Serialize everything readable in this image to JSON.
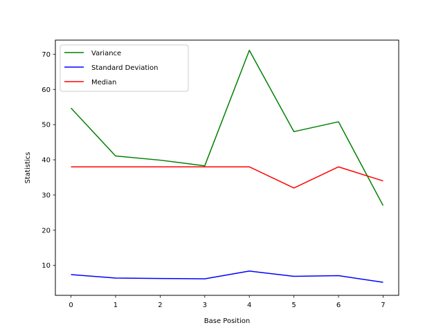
{
  "chart_data": {
    "type": "line",
    "title": "",
    "xlabel": "Base Position",
    "ylabel": "Statistics",
    "x": [
      0,
      1,
      2,
      3,
      4,
      5,
      6,
      7
    ],
    "xlim": [
      -0.35,
      7.35
    ],
    "ylim": [
      1.5,
      74.0
    ],
    "xticks": [
      0,
      1,
      2,
      3,
      4,
      5,
      6,
      7
    ],
    "yticks": [
      10,
      20,
      30,
      40,
      50,
      60,
      70
    ],
    "grid": false,
    "legend_position": "top-left",
    "series": [
      {
        "name": "Variance",
        "color": "#008000",
        "values": [
          54.7,
          41.1,
          39.9,
          38.3,
          71.1,
          48.0,
          50.8,
          27.0
        ]
      },
      {
        "name": "Standard Deviation",
        "color": "#0000ff",
        "values": [
          7.4,
          6.4,
          6.3,
          6.2,
          8.4,
          6.9,
          7.1,
          5.2
        ]
      },
      {
        "name": "Median",
        "color": "#ff0000",
        "values": [
          38,
          38,
          38,
          38,
          38,
          32,
          38,
          34
        ]
      }
    ]
  }
}
